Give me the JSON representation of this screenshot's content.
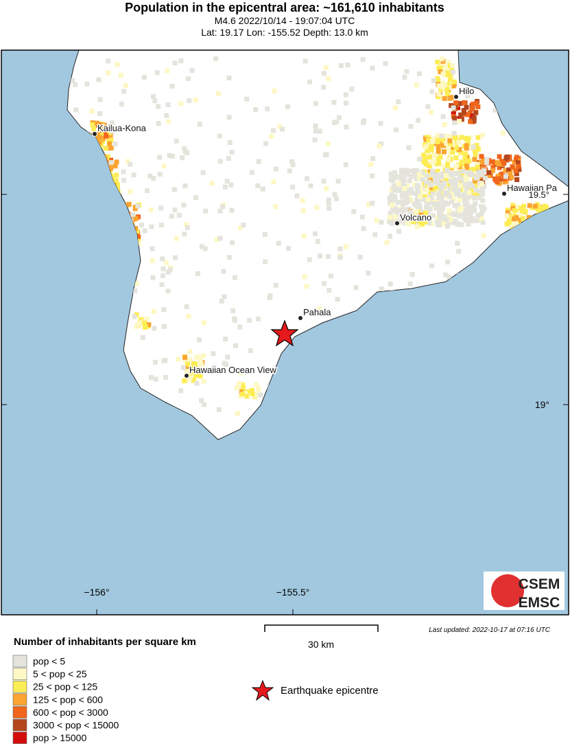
{
  "header": {
    "title": "Population in the epicentral area: ~161,610 inhabitants",
    "event": "M4.6 2022/10/14 - 19:07:04 UTC",
    "location": "Lat: 19.17 Lon: -155.52 Depth: 13.0 km"
  },
  "map": {
    "cities": [
      "Kailua-Kona",
      "Hilo",
      "Hawaiian Pa",
      "Volcano",
      "Pahala",
      "Hawaiian Ocean View"
    ],
    "lon_labels": [
      "−156°",
      "−155.5°"
    ],
    "lat_labels": [
      "19.5°",
      "19°"
    ],
    "scale": "30 km",
    "updated": "Last updated: 2022-10-17 at 07:16 UTC",
    "logo": [
      "CSEM",
      "EMSC"
    ]
  },
  "legend": {
    "title": "Number of inhabitants per square km",
    "entries": [
      {
        "label": "pop < 5",
        "color": "#e4e4dc"
      },
      {
        "label": "5 < pop < 25",
        "color": "#fdf8c4"
      },
      {
        "label": "25 < pop < 125",
        "color": "#fded55"
      },
      {
        "label": "125 < pop < 600",
        "color": "#fba431"
      },
      {
        "label": "600 < pop < 3000",
        "color": "#f0661c"
      },
      {
        "label": "3000 < pop < 15000",
        "color": "#b4461e"
      },
      {
        "label": "pop > 15000",
        "color": "#d30d0d"
      }
    ],
    "epicentre": "Earthquake epicentre"
  }
}
